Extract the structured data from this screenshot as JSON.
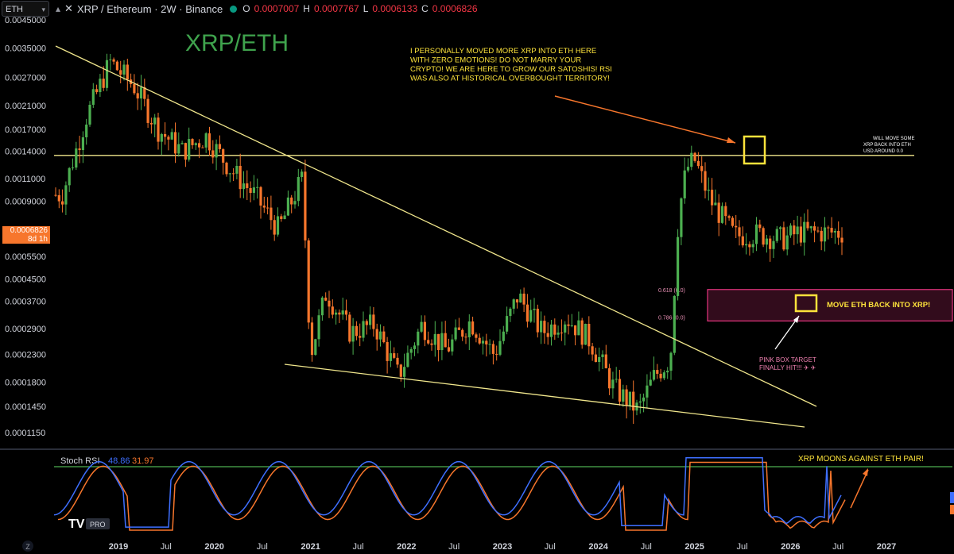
{
  "header": {
    "symbol_box": "ETH",
    "pair": "XRP / Ethereum · 2W · Binance",
    "ohlc": [
      {
        "label": "O",
        "value": "0.0007007"
      },
      {
        "label": "H",
        "value": "0.0007767"
      },
      {
        "label": "L",
        "value": "0.0006133"
      },
      {
        "label": "C",
        "value": "0.0006826"
      }
    ]
  },
  "price_tag": {
    "price": "0.0006826",
    "countdown": "8d 1h"
  },
  "brand": {
    "logo_text": "TV",
    "pro_badge": "PRO",
    "scale_button": "Z"
  },
  "colors": {
    "up": "#4caf50",
    "down": "#f7762c",
    "trendline": "#f0e68c",
    "target_box": "#e5357e",
    "annotation": "#fde33b",
    "stoch_k": "#3e6fff",
    "stoch_d": "#f7762c"
  },
  "chart_data": {
    "type": "candlestick",
    "title": "XRP/ETH",
    "y_scale": "log",
    "ylim": [
      0.000102,
      0.0046
    ],
    "y_ticks": [
      "0.0045000",
      "0.0035000",
      "0.0027000",
      "0.0021000",
      "0.0017000",
      "0.0014000",
      "0.0011000",
      "0.0009000",
      "0.0005500",
      "0.0004500",
      "0.0003700",
      "0.0002900",
      "0.0002300",
      "0.0001800",
      "0.0001450",
      "0.0001150"
    ],
    "x_ticks": [
      "2019",
      "Jul",
      "2020",
      "Jul",
      "2021",
      "Jul",
      "2022",
      "Jul",
      "2023",
      "Jul",
      "2024",
      "Jul",
      "2025",
      "Jul",
      "2026",
      "Jul",
      "2027"
    ],
    "series": [
      {
        "name": "XRP/ETH",
        "x": [
          "2018-06",
          "2018-09",
          "2018-12",
          "2019-03",
          "2019-06",
          "2019-09",
          "2019-12",
          "2020-03",
          "2020-06",
          "2020-09",
          "2020-12",
          "2021-01",
          "2021-03",
          "2021-06",
          "2021-09",
          "2021-12",
          "2022-03",
          "2022-06",
          "2022-09",
          "2022-12",
          "2023-03",
          "2023-06",
          "2023-09",
          "2023-12",
          "2024-03",
          "2024-06",
          "2024-08",
          "2024-10",
          "2024-11",
          "2024-12",
          "2025-01",
          "2025-03",
          "2025-06",
          "2025-09",
          "2025-12",
          "2026-02"
        ],
        "close": [
          0.00095,
          0.0019,
          0.0031,
          0.0025,
          0.0017,
          0.0014,
          0.0016,
          0.0012,
          0.00095,
          0.0007,
          0.0011,
          0.00023,
          0.0004,
          0.00028,
          0.0003,
          0.00019,
          0.0003,
          0.00024,
          0.00031,
          0.00023,
          0.00039,
          0.00028,
          0.00032,
          0.00026,
          0.00017,
          0.00014,
          0.00019,
          0.00022,
          0.0008,
          0.0012,
          0.0013,
          0.00091,
          0.00066,
          0.00067,
          0.00064,
          0.00068
        ]
      }
    ],
    "levels": [
      {
        "label": "0.618 (0.0",
        "value": 0.00041
      },
      {
        "label": "0.786 (0.0",
        "value": 0.00031
      },
      {
        "label": "",
        "value": 0.00135
      }
    ],
    "annotations": [
      {
        "text": [
          "I PERSONALLY MOVED MORE XRP INTO ETH HERE",
          "WITH ZERO EMOTIONS! DO NOT MARRY YOUR",
          "CRYPTO! WE ARE HERE TO GROW OUR SATOSHIS! RSI",
          "WAS ALSO AT HISTORICAL OVERBOUGHT TERRITORY!"
        ]
      },
      {
        "text": [
          "WILL MOVE SOME",
          "XRP BACK INTO ETH",
          "USD AROUND 0.0"
        ]
      },
      {
        "text": [
          "MOVE ETH BACK INTO XRP!"
        ]
      },
      {
        "text": [
          "PINK BOX TARGET",
          "FINALLY HIT!!! ✈ ✈"
        ]
      }
    ]
  },
  "stoch_rsi": {
    "label": "Stoch RSI",
    "k_value": "48.86",
    "d_value": "31.97",
    "note": "XRP MOONS AGAINST ETH PAIR!"
  }
}
